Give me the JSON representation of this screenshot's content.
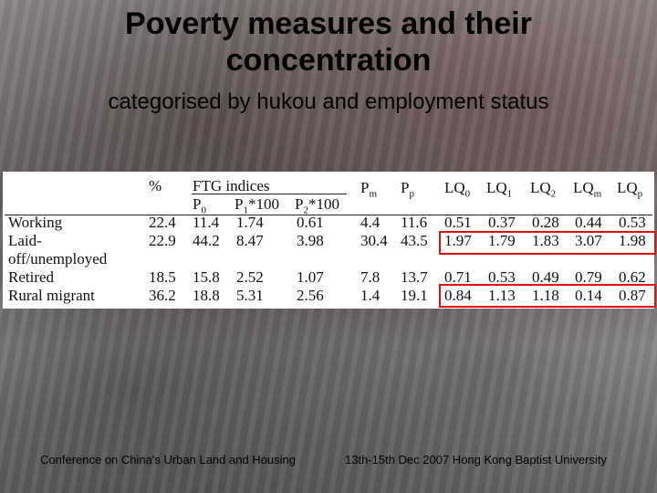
{
  "slide": {
    "title": "Poverty measures and their concentration",
    "subtitle": "categorised by hukou and employment status"
  },
  "table": {
    "header_pct": "%",
    "header_ftg": "FTG indices",
    "header_p0": "P0",
    "header_p1": "P1*100",
    "header_p2": "P2*100",
    "header_pm": "Pm",
    "header_pp": "Pp",
    "header_lq0": "LQ0",
    "header_lq1": "LQ1",
    "header_lq2": "LQ2",
    "header_lqm": "LQm",
    "header_lqp": "LQp",
    "rows": [
      {
        "label": "Working",
        "pct": "22.4",
        "p0": "11.4",
        "p1": "1.74",
        "p2": "0.61",
        "pm": "4.4",
        "pp": "11.6",
        "lq0": "0.51",
        "lq1": "0.37",
        "lq2": "0.28",
        "lqm": "0.44",
        "lqp": "0.53"
      },
      {
        "label": "Laid-",
        "label2": "off/unemployed",
        "pct": "22.9",
        "p0": "44.2",
        "p1": "8.47",
        "p2": "3.98",
        "pm": "30.4",
        "pp": "43.5",
        "lq0": "1.97",
        "lq1": "1.79",
        "lq2": "1.83",
        "lqm": "3.07",
        "lqp": "1.98"
      },
      {
        "label": "Retired",
        "pct": "18.5",
        "p0": "15.8",
        "p1": "2.52",
        "p2": "1.07",
        "pm": "7.8",
        "pp": "13.7",
        "lq0": "0.71",
        "lq1": "0.53",
        "lq2": "0.49",
        "lqm": "0.79",
        "lqp": "0.62"
      },
      {
        "label": "Rural migrant",
        "pct": "36.2",
        "p0": "18.8",
        "p1": "5.31",
        "p2": "2.56",
        "pm": "1.4",
        "pp": "19.1",
        "lq0": "0.84",
        "lq1": "1.13",
        "lq2": "1.18",
        "lqm": "0.14",
        "lqp": "0.87"
      }
    ],
    "highlight_color": "#e01010"
  },
  "footer": {
    "left": "Conference on China's Urban Land and Housing",
    "right": "13th-15th Dec 2007 Hong Kong Baptist University"
  }
}
